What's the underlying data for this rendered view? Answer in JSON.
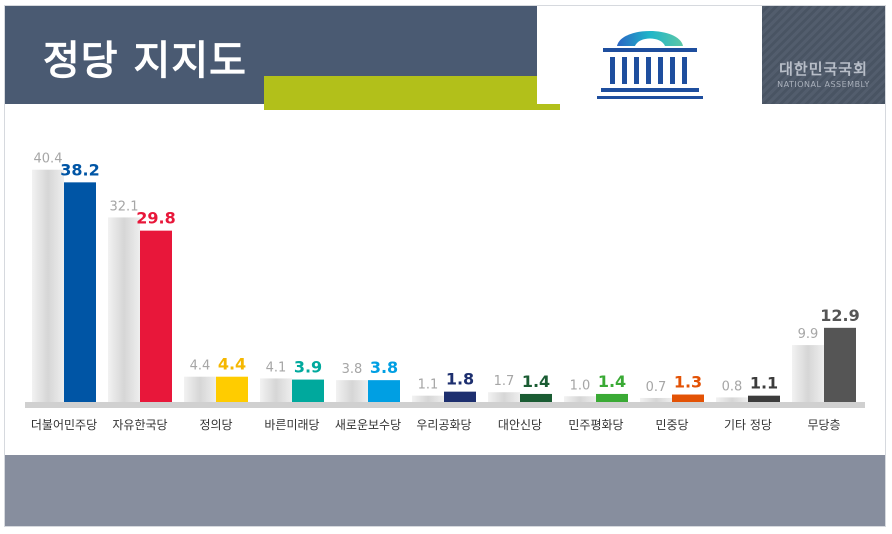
{
  "header": {
    "title": "정당 지지도"
  },
  "logo": {
    "name_ko": "대한민국국회",
    "name_en": "NATIONAL ASSEMBLY",
    "icon": "national-assembly-building-icon"
  },
  "colors": {
    "header_bg": "#4a5a72",
    "accent": "#b2c01a",
    "footer_bg": "#878e9e",
    "previous_bar": "#d9d9d9",
    "previous_label": "#a6a6a6"
  },
  "chart_data": {
    "type": "bar",
    "categories": [
      "더불어민주당",
      "자유한국당",
      "정의당",
      "바른미래당",
      "새로운보수당",
      "우리공화당",
      "대안신당",
      "민주평화당",
      "민중당",
      "기타 정당",
      "무당층"
    ],
    "series": [
      {
        "values": [
          40.4,
          32.1,
          4.4,
          4.1,
          3.8,
          1.1,
          1.7,
          1.0,
          0.7,
          0.8,
          9.9
        ],
        "color": "#d9d9d9"
      },
      {
        "values": [
          38.2,
          29.8,
          4.4,
          3.9,
          3.8,
          1.8,
          1.4,
          1.4,
          1.3,
          1.1,
          12.9
        ],
        "colors": [
          "#0055a5",
          "#e8173a",
          "#ffcc00",
          "#00a99d",
          "#009fe3",
          "#1d2f6f",
          "#1a5c33",
          "#3aaa35",
          "#e35205",
          "#3c3c3c",
          "#555555"
        ],
        "label_colors": [
          "#0055a5",
          "#e8173a",
          "#f5b700",
          "#00a99d",
          "#009fe3",
          "#1d2f6f",
          "#1a5c33",
          "#3aaa35",
          "#e35205",
          "#3c3c3c",
          "#555555"
        ]
      }
    ],
    "grid": false,
    "legend": "none"
  }
}
